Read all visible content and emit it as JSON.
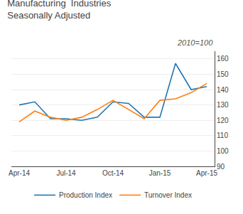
{
  "chart_data": {
    "type": "line",
    "title": "Manufacturing  Industries\nSeasonally Adjusted",
    "subtitle": "2010=100",
    "categories": [
      "Apr-14",
      null,
      null,
      "Jul-14",
      null,
      null,
      "Oct-14",
      null,
      null,
      "Jan-15",
      null,
      null,
      "Apr-15"
    ],
    "series": [
      {
        "name": "Production Index",
        "values": [
          130,
          132,
          121,
          121,
          120,
          122,
          132,
          131,
          122,
          122,
          157,
          140,
          142
        ]
      },
      {
        "name": "Turnover Index",
        "values": [
          119,
          126,
          122,
          120,
          122,
          127,
          133,
          127,
          121,
          133,
          134,
          138,
          144
        ]
      }
    ],
    "ylim": [
      90,
      165
    ],
    "yticks": [
      90,
      100,
      110,
      120,
      130,
      140,
      150,
      160
    ],
    "grid": true,
    "legend": "bottom"
  }
}
